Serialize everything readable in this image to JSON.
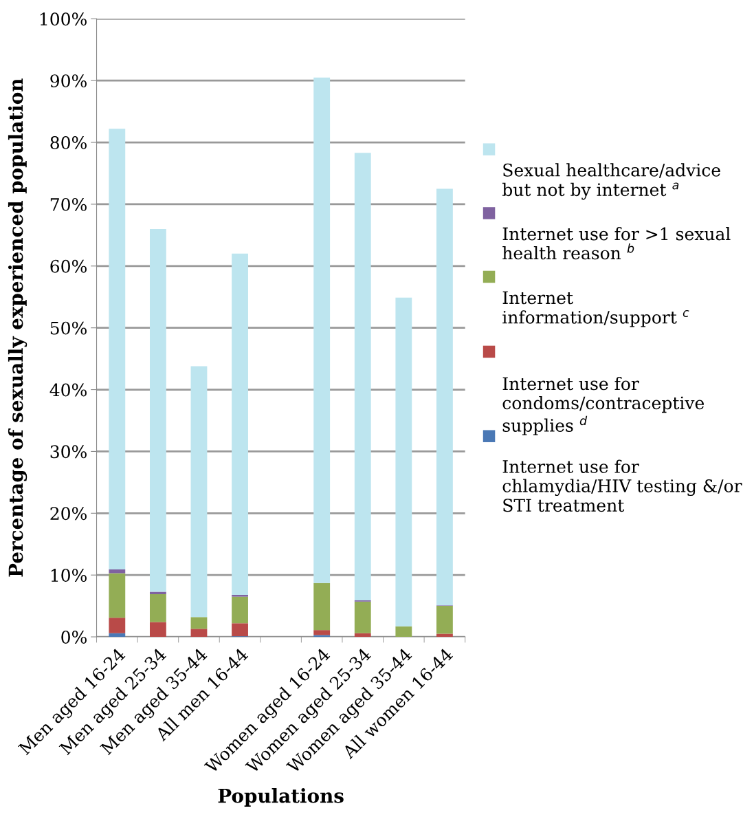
{
  "chart_data": {
    "type": "bar",
    "stacked": true,
    "xlabel": "Populations",
    "ylabel": "Percentage of sexually experienced population",
    "categories": [
      "Men aged 16-24",
      "Men aged 25-34",
      "Men aged 35-44",
      "All men 16-44",
      null,
      "Women aged 16-24",
      "Women aged 25-34",
      "Women aged 35-44",
      "All women 16-44"
    ],
    "series": [
      {
        "name": "Internet use for\nchlamydia/HIV testing &/or\nSTI treatment",
        "color": "#4a78b5",
        "values": [
          0.6,
          0,
          0,
          0.1,
          null,
          0.3,
          0,
          0,
          0
        ]
      },
      {
        "name": "Internet use for\ncondoms/contraceptive\nsupplies $^{d}$",
        "color": "#b94a48",
        "values": [
          2.5,
          2.4,
          1.3,
          2.1,
          null,
          0.8,
          0.6,
          0,
          0.5
        ]
      },
      {
        "name": "Internet\ninformation/support $^{c}$",
        "color": "#93ad55",
        "values": [
          7.2,
          4.5,
          1.9,
          4.3,
          null,
          7.6,
          5.1,
          1.7,
          4.5
        ]
      },
      {
        "name": "Internet use for >1 sexual\nhealth reason $^{b}$",
        "color": "#7f62a0",
        "values": [
          0.6,
          0.4,
          0,
          0.3,
          null,
          0,
          0.2,
          0,
          0.1
        ]
      },
      {
        "name": "Sexual healthcare/advice\nbut not by internet $^{a}$",
        "color": "#bde5ef",
        "values": [
          71.3,
          58.7,
          40.6,
          55.2,
          null,
          81.8,
          72.4,
          53.2,
          67.4
        ]
      }
    ],
    "ylim": [
      0,
      100
    ],
    "yticks": [
      {
        "value": 0,
        "label": "0%"
      },
      {
        "value": 10,
        "label": "10%"
      },
      {
        "value": 20,
        "label": "20%"
      },
      {
        "value": 30,
        "label": "30%"
      },
      {
        "value": 40,
        "label": "40%"
      },
      {
        "value": 50,
        "label": "50%"
      },
      {
        "value": 60,
        "label": "60%"
      },
      {
        "value": 70,
        "label": "70%"
      },
      {
        "value": 80,
        "label": "80%"
      },
      {
        "value": 90,
        "label": "90%"
      },
      {
        "value": 100,
        "label": "100%"
      }
    ],
    "grid": "y",
    "legend": "right"
  }
}
